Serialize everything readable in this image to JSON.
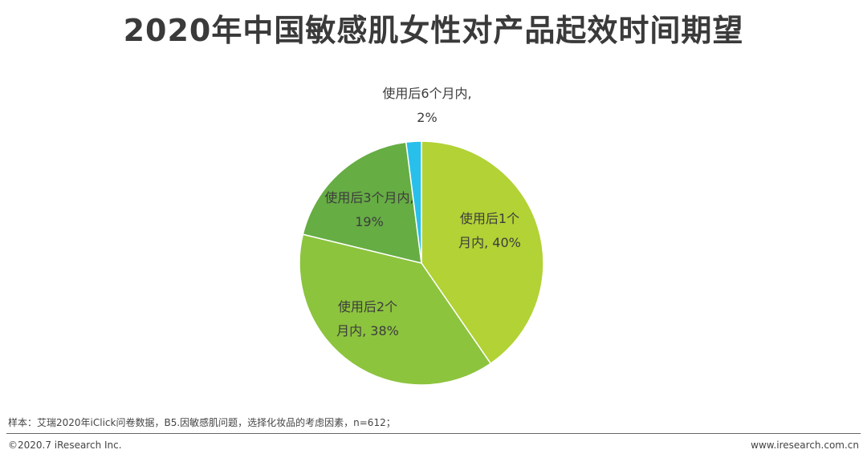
{
  "title": "2020年中国敏感肌女性对产品起效时间期望",
  "chart_data": {
    "type": "pie",
    "title": "2020年中国敏感肌女性对产品起效时间期望",
    "slices": [
      {
        "label_line1": "使用后1个",
        "label_line2": "月内, 40%",
        "category": "使用后1个月内",
        "value": 40,
        "color": "#b2d235"
      },
      {
        "label_line1": "使用后2个",
        "label_line2": "月内, 38%",
        "category": "使用后2个月内",
        "value": 38,
        "color": "#8cc43e"
      },
      {
        "label_line1": "使用后3个月内,",
        "label_line2": "19%",
        "category": "使用后3个月内",
        "value": 19,
        "color": "#66ad44"
      },
      {
        "label_line1": "使用后6个月内,",
        "label_line2": "2%",
        "category": "使用后6个月内",
        "value": 2,
        "color": "#28c0ea"
      }
    ]
  },
  "footer": {
    "source": "样本：艾瑞2020年iClick问卷数据，B5.因敏感肌问题，选择化妆品的考虑因素，n=612；",
    "copyright": "©2020.7 iResearch Inc.",
    "website": "www.iresearch.com.cn"
  }
}
